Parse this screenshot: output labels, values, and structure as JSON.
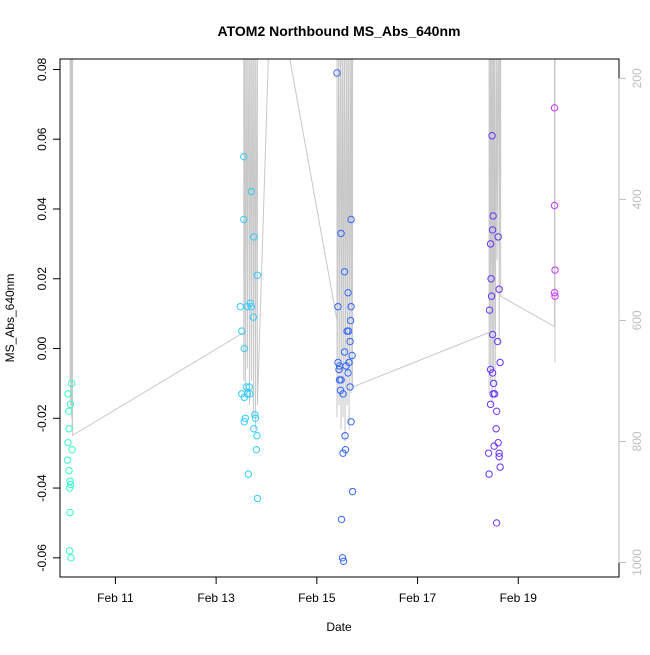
{
  "chart_data": {
    "type": "scatter",
    "title": "ATOM2 Northbound MS_Abs_640nm",
    "xlabel": "Date",
    "ylabel": "MS_Abs_640nm",
    "x_ticks": [
      "Feb 11",
      "Feb 13",
      "Feb 15",
      "Feb 17",
      "Feb 19"
    ],
    "x_tick_days": [
      11,
      13,
      15,
      17,
      19
    ],
    "xlim": [
      9.9,
      21.0
    ],
    "ylim": [
      -0.0655,
      0.083
    ],
    "y_ticks": [
      -0.06,
      -0.04,
      -0.02,
      0.0,
      0.02,
      0.04,
      0.06,
      0.08
    ],
    "y_tick_labels": [
      "-0.06",
      "-0.04",
      "-0.02",
      "0.00",
      "0.02",
      "0.04",
      "0.06",
      "0.08"
    ],
    "right_axis": {
      "ticks": [
        200,
        400,
        600,
        800,
        1000
      ],
      "tick_labels": [
        "200",
        "400",
        "600",
        "800",
        "1000"
      ],
      "lim": [
        168,
        1024
      ],
      "inverted": true,
      "color": "#bdbdbd"
    },
    "grid": false,
    "points": [
      {
        "x": 10.06,
        "y": -0.013,
        "color": "#33ffcc"
      },
      {
        "x": 10.07,
        "y": -0.018,
        "color": "#33ffcc"
      },
      {
        "x": 10.08,
        "y": -0.023,
        "color": "#33ffcc"
      },
      {
        "x": 10.06,
        "y": -0.027,
        "color": "#33ffcc"
      },
      {
        "x": 10.05,
        "y": -0.032,
        "color": "#33ffcc"
      },
      {
        "x": 10.08,
        "y": -0.035,
        "color": "#33ffcc"
      },
      {
        "x": 10.1,
        "y": -0.038,
        "color": "#33ffcc"
      },
      {
        "x": 10.11,
        "y": -0.039,
        "color": "#33ffcc"
      },
      {
        "x": 10.09,
        "y": -0.04,
        "color": "#33ffcc"
      },
      {
        "x": 10.1,
        "y": -0.047,
        "color": "#33ffcc"
      },
      {
        "x": 10.09,
        "y": -0.058,
        "color": "#33ffcc"
      },
      {
        "x": 10.12,
        "y": -0.06,
        "color": "#33ffcc"
      },
      {
        "x": 10.13,
        "y": -0.01,
        "color": "#33ffcc"
      },
      {
        "x": 10.11,
        "y": -0.016,
        "color": "#33ffcc"
      },
      {
        "x": 10.14,
        "y": -0.029,
        "color": "#33ffcc"
      },
      {
        "x": 13.55,
        "y": 0.055,
        "color": "#33ccff"
      },
      {
        "x": 13.55,
        "y": 0.037,
        "color": "#33ccff"
      },
      {
        "x": 13.7,
        "y": 0.045,
        "color": "#33ccff"
      },
      {
        "x": 13.75,
        "y": 0.032,
        "color": "#33ccff"
      },
      {
        "x": 13.82,
        "y": 0.021,
        "color": "#33ccff"
      },
      {
        "x": 13.48,
        "y": 0.012,
        "color": "#33ccff"
      },
      {
        "x": 13.62,
        "y": 0.012,
        "color": "#33ccff"
      },
      {
        "x": 13.68,
        "y": 0.013,
        "color": "#33ccff"
      },
      {
        "x": 13.7,
        "y": 0.012,
        "color": "#33ccff"
      },
      {
        "x": 13.74,
        "y": 0.009,
        "color": "#33ccff"
      },
      {
        "x": 13.51,
        "y": 0.005,
        "color": "#33ccff"
      },
      {
        "x": 13.56,
        "y": 0.0,
        "color": "#33ccff"
      },
      {
        "x": 13.6,
        "y": -0.011,
        "color": "#33ccff"
      },
      {
        "x": 13.66,
        "y": -0.011,
        "color": "#33ccff"
      },
      {
        "x": 13.51,
        "y": -0.013,
        "color": "#33ccff"
      },
      {
        "x": 13.56,
        "y": -0.014,
        "color": "#33ccff"
      },
      {
        "x": 13.62,
        "y": -0.013,
        "color": "#33ccff"
      },
      {
        "x": 13.67,
        "y": -0.013,
        "color": "#33ccff"
      },
      {
        "x": 13.58,
        "y": -0.02,
        "color": "#33ccff"
      },
      {
        "x": 13.56,
        "y": -0.021,
        "color": "#33ccff"
      },
      {
        "x": 13.77,
        "y": -0.019,
        "color": "#33ccff"
      },
      {
        "x": 13.78,
        "y": -0.02,
        "color": "#33ccff"
      },
      {
        "x": 13.75,
        "y": -0.023,
        "color": "#33ccff"
      },
      {
        "x": 13.81,
        "y": -0.025,
        "color": "#33ccff"
      },
      {
        "x": 13.8,
        "y": -0.029,
        "color": "#33ccff"
      },
      {
        "x": 13.64,
        "y": -0.036,
        "color": "#33ccff"
      },
      {
        "x": 13.82,
        "y": -0.043,
        "color": "#33ccff"
      },
      {
        "x": 15.4,
        "y": 0.079,
        "color": "#3366ff"
      },
      {
        "x": 15.48,
        "y": 0.033,
        "color": "#3366ff"
      },
      {
        "x": 15.68,
        "y": 0.037,
        "color": "#3366ff"
      },
      {
        "x": 15.55,
        "y": 0.022,
        "color": "#3366ff"
      },
      {
        "x": 15.62,
        "y": 0.016,
        "color": "#3366ff"
      },
      {
        "x": 15.42,
        "y": 0.012,
        "color": "#3366ff"
      },
      {
        "x": 15.68,
        "y": 0.012,
        "color": "#3366ff"
      },
      {
        "x": 15.67,
        "y": 0.008,
        "color": "#3366ff"
      },
      {
        "x": 15.6,
        "y": 0.005,
        "color": "#3366ff"
      },
      {
        "x": 15.63,
        "y": 0.005,
        "color": "#3366ff"
      },
      {
        "x": 15.66,
        "y": 0.002,
        "color": "#3366ff"
      },
      {
        "x": 15.55,
        "y": -0.001,
        "color": "#3366ff"
      },
      {
        "x": 15.7,
        "y": -0.002,
        "color": "#3366ff"
      },
      {
        "x": 15.42,
        "y": -0.004,
        "color": "#3366ff"
      },
      {
        "x": 15.45,
        "y": -0.005,
        "color": "#3366ff"
      },
      {
        "x": 15.44,
        "y": -0.006,
        "color": "#3366ff"
      },
      {
        "x": 15.58,
        "y": -0.005,
        "color": "#3366ff"
      },
      {
        "x": 15.64,
        "y": -0.004,
        "color": "#3366ff"
      },
      {
        "x": 15.62,
        "y": -0.007,
        "color": "#3366ff"
      },
      {
        "x": 15.45,
        "y": -0.009,
        "color": "#3366ff"
      },
      {
        "x": 15.48,
        "y": -0.009,
        "color": "#3366ff"
      },
      {
        "x": 15.66,
        "y": -0.011,
        "color": "#3366ff"
      },
      {
        "x": 15.47,
        "y": -0.012,
        "color": "#3366ff"
      },
      {
        "x": 15.52,
        "y": -0.013,
        "color": "#3366ff"
      },
      {
        "x": 15.68,
        "y": -0.021,
        "color": "#3366ff"
      },
      {
        "x": 15.56,
        "y": -0.025,
        "color": "#3366ff"
      },
      {
        "x": 15.57,
        "y": -0.029,
        "color": "#3366ff"
      },
      {
        "x": 15.52,
        "y": -0.03,
        "color": "#3366ff"
      },
      {
        "x": 15.71,
        "y": -0.041,
        "color": "#3366ff"
      },
      {
        "x": 15.49,
        "y": -0.049,
        "color": "#3366ff"
      },
      {
        "x": 15.51,
        "y": -0.06,
        "color": "#3366ff"
      },
      {
        "x": 15.53,
        "y": -0.061,
        "color": "#3366ff"
      },
      {
        "x": 18.48,
        "y": 0.061,
        "color": "#6633ff"
      },
      {
        "x": 18.5,
        "y": 0.038,
        "color": "#6633ff"
      },
      {
        "x": 18.49,
        "y": 0.034,
        "color": "#6633ff"
      },
      {
        "x": 18.6,
        "y": 0.032,
        "color": "#6633ff"
      },
      {
        "x": 18.45,
        "y": 0.03,
        "color": "#6633ff"
      },
      {
        "x": 18.46,
        "y": 0.02,
        "color": "#6633ff"
      },
      {
        "x": 18.62,
        "y": 0.017,
        "color": "#6633ff"
      },
      {
        "x": 18.47,
        "y": 0.015,
        "color": "#6633ff"
      },
      {
        "x": 18.43,
        "y": 0.011,
        "color": "#6633ff"
      },
      {
        "x": 18.49,
        "y": 0.004,
        "color": "#6633ff"
      },
      {
        "x": 18.59,
        "y": 0.002,
        "color": "#6633ff"
      },
      {
        "x": 18.64,
        "y": -0.004,
        "color": "#6633ff"
      },
      {
        "x": 18.45,
        "y": -0.006,
        "color": "#6633ff"
      },
      {
        "x": 18.49,
        "y": -0.007,
        "color": "#6633ff"
      },
      {
        "x": 18.51,
        "y": -0.01,
        "color": "#6633ff"
      },
      {
        "x": 18.5,
        "y": -0.013,
        "color": "#6633ff"
      },
      {
        "x": 18.53,
        "y": -0.013,
        "color": "#6633ff"
      },
      {
        "x": 18.45,
        "y": -0.016,
        "color": "#6633ff"
      },
      {
        "x": 18.57,
        "y": -0.018,
        "color": "#6633ff"
      },
      {
        "x": 18.56,
        "y": -0.023,
        "color": "#6633ff"
      },
      {
        "x": 18.6,
        "y": -0.027,
        "color": "#6633ff"
      },
      {
        "x": 18.52,
        "y": -0.028,
        "color": "#6633ff"
      },
      {
        "x": 18.41,
        "y": -0.03,
        "color": "#6633ff"
      },
      {
        "x": 18.62,
        "y": -0.03,
        "color": "#6633ff"
      },
      {
        "x": 18.62,
        "y": -0.031,
        "color": "#6633ff"
      },
      {
        "x": 18.64,
        "y": -0.034,
        "color": "#6633ff"
      },
      {
        "x": 18.42,
        "y": -0.036,
        "color": "#6633ff"
      },
      {
        "x": 18.57,
        "y": -0.05,
        "color": "#6633ff"
      },
      {
        "x": 19.72,
        "y": 0.069,
        "color": "#cc33ff"
      },
      {
        "x": 19.72,
        "y": 0.041,
        "color": "#cc33ff"
      },
      {
        "x": 19.73,
        "y": 0.0225,
        "color": "#cc33ff"
      },
      {
        "x": 19.72,
        "y": 0.016,
        "color": "#cc33ff"
      },
      {
        "x": 19.73,
        "y": 0.015,
        "color": "#cc33ff"
      }
    ],
    "background_line": {
      "color": "#c8c8c8",
      "axis": "right",
      "points": [
        [
          10.1,
          0
        ],
        [
          10.1,
          700
        ],
        [
          10.11,
          0
        ],
        [
          10.11,
          740
        ],
        [
          10.12,
          0
        ],
        [
          10.12,
          720
        ],
        [
          10.13,
          0
        ],
        [
          10.13,
          760
        ],
        [
          10.14,
          0
        ],
        [
          10.14,
          780
        ],
        [
          10.15,
          0
        ],
        [
          10.15,
          790
        ],
        [
          13.55,
          620
        ],
        [
          13.55,
          0
        ],
        [
          13.55,
          700
        ],
        [
          13.58,
          0
        ],
        [
          13.58,
          720
        ],
        [
          13.62,
          0
        ],
        [
          13.62,
          680
        ],
        [
          13.66,
          0
        ],
        [
          13.66,
          740
        ],
        [
          13.7,
          0
        ],
        [
          13.7,
          700
        ],
        [
          13.74,
          0
        ],
        [
          13.74,
          760
        ],
        [
          13.78,
          0
        ],
        [
          13.78,
          780
        ],
        [
          13.82,
          0
        ],
        [
          13.82,
          740
        ],
        [
          14.1,
          0
        ],
        [
          15.4,
          600
        ],
        [
          15.4,
          0
        ],
        [
          15.4,
          760
        ],
        [
          15.44,
          0
        ],
        [
          15.44,
          740
        ],
        [
          15.48,
          0
        ],
        [
          15.48,
          780
        ],
        [
          15.52,
          0
        ],
        [
          15.52,
          760
        ],
        [
          15.56,
          0
        ],
        [
          15.56,
          800
        ],
        [
          15.6,
          0
        ],
        [
          15.6,
          740
        ],
        [
          15.64,
          0
        ],
        [
          15.64,
          780
        ],
        [
          15.68,
          0
        ],
        [
          15.68,
          720
        ],
        [
          15.71,
          0
        ],
        [
          15.71,
          710
        ],
        [
          18.42,
          620
        ],
        [
          18.42,
          0
        ],
        [
          18.42,
          720
        ],
        [
          18.45,
          0
        ],
        [
          18.45,
          700
        ],
        [
          18.48,
          0
        ],
        [
          18.48,
          740
        ],
        [
          18.51,
          0
        ],
        [
          18.51,
          680
        ],
        [
          18.54,
          0
        ],
        [
          18.54,
          720
        ],
        [
          18.58,
          0
        ],
        [
          18.58,
          500
        ],
        [
          18.62,
          0
        ],
        [
          18.62,
          640
        ],
        [
          18.65,
          0
        ],
        [
          18.65,
          560
        ],
        [
          19.72,
          610
        ],
        [
          19.72,
          0
        ],
        [
          19.73,
          0
        ],
        [
          19.73,
          670
        ]
      ]
    }
  }
}
